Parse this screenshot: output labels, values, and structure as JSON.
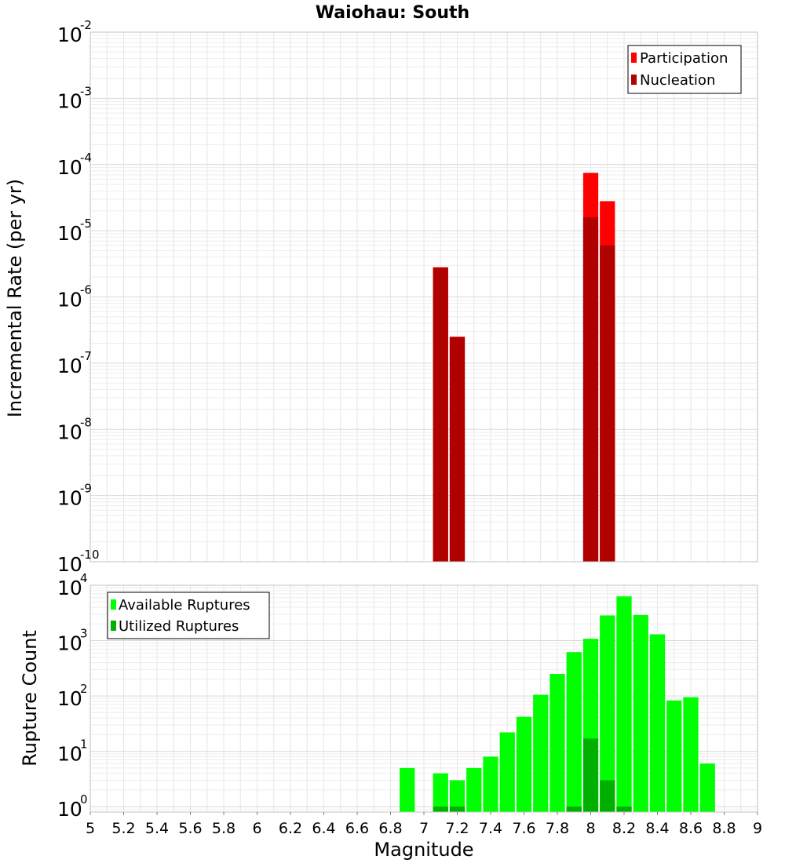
{
  "chart_data": [
    {
      "type": "bar",
      "title": "Waiohau: South",
      "xlabel": "",
      "ylabel": "Incremental Rate (per yr)",
      "yscale": "log",
      "ylim": [
        1e-10,
        0.01
      ],
      "xlim": [
        5,
        9
      ],
      "grid": true,
      "legend_position": "top-right",
      "ytick_exponents": [
        "-10",
        "-9",
        "-8",
        "-7",
        "-6",
        "-5",
        "-4",
        "-3",
        "-2"
      ],
      "series": [
        {
          "name": "Participation",
          "color": "#ff0000",
          "x": [
            7.1,
            7.2,
            8.0,
            8.1
          ],
          "values": [
            2.8e-06,
            2.5e-07,
            7.5e-05,
            2.8e-05
          ]
        },
        {
          "name": "Nucleation",
          "color": "#b00000",
          "x": [
            7.1,
            7.2,
            8.0,
            8.1
          ],
          "values": [
            2.8e-06,
            2.5e-07,
            1.6e-05,
            6e-06
          ]
        }
      ]
    },
    {
      "type": "bar",
      "title": "",
      "xlabel": "Magnitude",
      "ylabel": "Rupture Count",
      "yscale": "log",
      "ylim": [
        0.8,
        10000
      ],
      "xlim": [
        5,
        9
      ],
      "grid": true,
      "legend_position": "top-left",
      "ytick_exponents": [
        "0",
        "1",
        "2",
        "3",
        "4"
      ],
      "xticks": [
        "5",
        "5.2",
        "5.4",
        "5.6",
        "5.8",
        "6",
        "6.2",
        "6.4",
        "6.6",
        "6.8",
        "7",
        "7.2",
        "7.4",
        "7.6",
        "7.8",
        "8",
        "8.2",
        "8.4",
        "8.6",
        "8.8",
        "9"
      ],
      "series": [
        {
          "name": "Available Ruptures",
          "color": "#00ff00",
          "x": [
            6.9,
            7.1,
            7.2,
            7.3,
            7.4,
            7.5,
            7.6,
            7.7,
            7.8,
            7.9,
            8.0,
            8.1,
            8.2,
            8.3,
            8.4,
            8.5,
            8.6,
            8.7
          ],
          "values": [
            5,
            4,
            3,
            5,
            8,
            22,
            42,
            105,
            250,
            620,
            1080,
            2850,
            6300,
            2900,
            1300,
            83,
            95,
            6
          ]
        },
        {
          "name": "Utilized Ruptures",
          "color": "#00b000",
          "x": [
            7.1,
            7.2,
            7.9,
            8.0,
            8.1,
            8.2
          ],
          "values": [
            1,
            1,
            1,
            17,
            3,
            1
          ]
        }
      ]
    }
  ]
}
